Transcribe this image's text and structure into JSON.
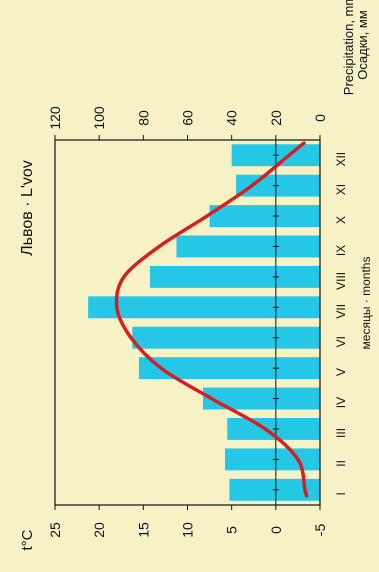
{
  "chart_data": {
    "type": "bar",
    "orientation": "rotated 90° counter-clockwise",
    "title": "Львов · L'vov",
    "xlabel": "месяцы · months",
    "categories": [
      "I",
      "II",
      "III",
      "IV",
      "V",
      "VI",
      "VII",
      "VIII",
      "IX",
      "X",
      "XI",
      "XII"
    ],
    "left_axis": {
      "label": "t°C",
      "ticks": [
        "25",
        "20",
        "15",
        "10",
        "5",
        "0",
        "-5"
      ],
      "ylim": [
        -5,
        25
      ]
    },
    "right_axis": {
      "label_ru": "Осадки, мм",
      "label_en": "Precipitation, mm",
      "ticks": [
        "120",
        "100",
        "80",
        "60",
        "40",
        "20",
        "0"
      ],
      "ylim": [
        0,
        120
      ]
    },
    "series": [
      {
        "kind": "bar",
        "axis": "right",
        "values": [
          41,
          43,
          42,
          53,
          82,
          85,
          105,
          77,
          65,
          50,
          38,
          40
        ],
        "color": "#24c8e6"
      },
      {
        "kind": "line",
        "axis": "left",
        "values": [
          -3.3,
          -2.5,
          1.2,
          7.3,
          13.0,
          16.4,
          18.0,
          17.2,
          13.2,
          7.8,
          2.7,
          -1.5
        ],
        "color": "#d42020"
      }
    ],
    "grid": false,
    "legend": "none"
  }
}
